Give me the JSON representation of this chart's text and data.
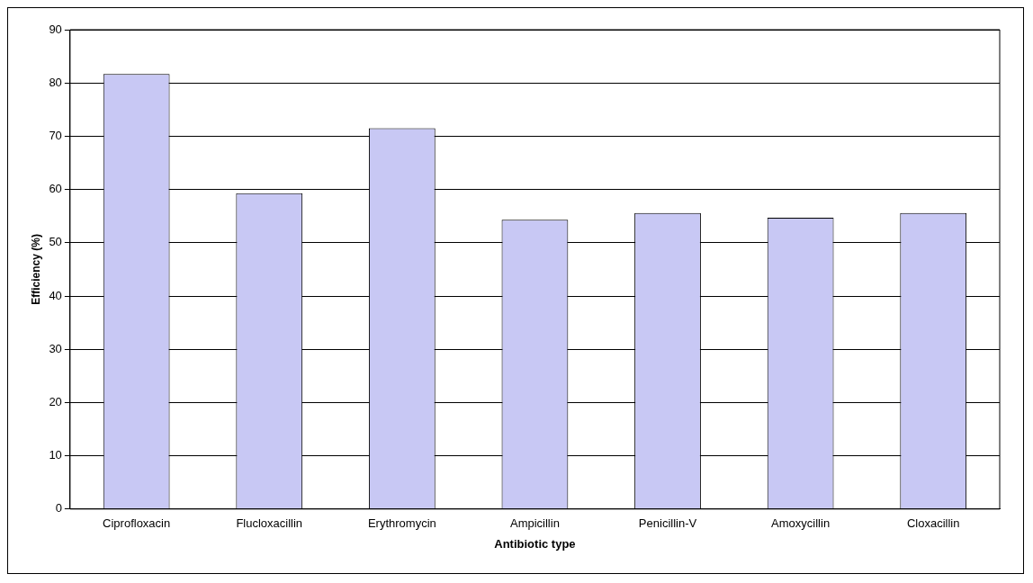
{
  "chart_data": {
    "type": "bar",
    "xlabel": "Antibiotic type",
    "ylabel": "Efficiency (%)",
    "categories": [
      "Ciprofloxacin",
      "Flucloxacillin",
      "Erythromycin",
      "Ampicillin",
      "Penicillin-V",
      "Amoxycillin",
      "Cloxacillin"
    ],
    "values": [
      81.7,
      59.3,
      71.5,
      54.3,
      55.6,
      54.7,
      55.6
    ],
    "color": "#c8c8f4",
    "ylim": [
      0,
      90
    ],
    "yticks": [
      0,
      10,
      20,
      30,
      40,
      50,
      60,
      70,
      80,
      90
    ],
    "grid": "y",
    "legend": false
  }
}
